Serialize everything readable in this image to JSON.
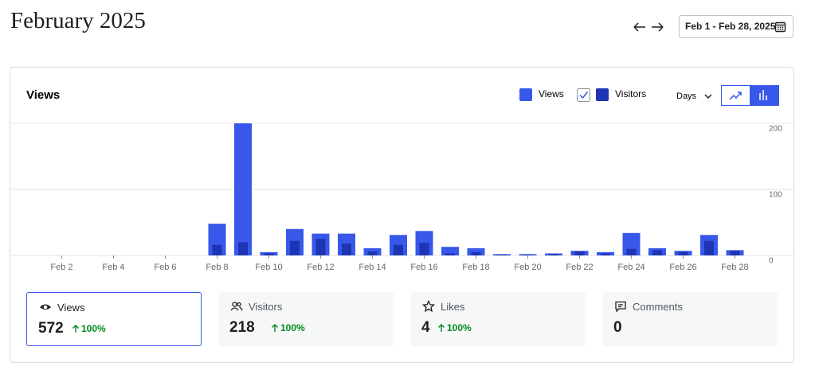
{
  "header": {
    "title": "February 2025",
    "date_range": "Feb 1 - Feb 28, 2025"
  },
  "chart_data": {
    "type": "bar",
    "title": "Views",
    "period": "Days",
    "categories": [
      null,
      "Feb 2",
      null,
      "Feb 4",
      null,
      "Feb 6",
      null,
      "Feb 8",
      null,
      "Feb 10",
      null,
      "Feb 12",
      null,
      "Feb 14",
      null,
      "Feb 16",
      null,
      "Feb 18",
      null,
      "Feb 20",
      null,
      "Feb 22",
      null,
      "Feb 24",
      null,
      "Feb 26",
      null,
      "Feb 28"
    ],
    "series": [
      {
        "name": "Views",
        "color": "#3858e9",
        "values": [
          0,
          0,
          0,
          0,
          0,
          0,
          0,
          48,
          200,
          5,
          40,
          33,
          33,
          11,
          31,
          37,
          13,
          11,
          2,
          2,
          3,
          7,
          5,
          34,
          11,
          7,
          31,
          8
        ]
      },
      {
        "name": "Visitors",
        "color": "#1d35b4",
        "values": [
          0,
          0,
          0,
          0,
          0,
          0,
          0,
          16,
          20,
          3,
          22,
          25,
          18,
          6,
          16,
          19,
          3,
          5,
          1,
          1,
          2,
          6,
          3,
          10,
          8,
          5,
          22,
          7
        ]
      }
    ],
    "ylim": [
      0,
      200
    ],
    "yticks": [
      0,
      100,
      200
    ],
    "grid": true
  },
  "cards": [
    {
      "label": "Views",
      "value": 572,
      "change": "100%"
    },
    {
      "label": "Visitors",
      "value": 218,
      "change": "100%"
    },
    {
      "label": "Likes",
      "value": 4,
      "change": "100%"
    },
    {
      "label": "Comments",
      "value": 0
    }
  ]
}
